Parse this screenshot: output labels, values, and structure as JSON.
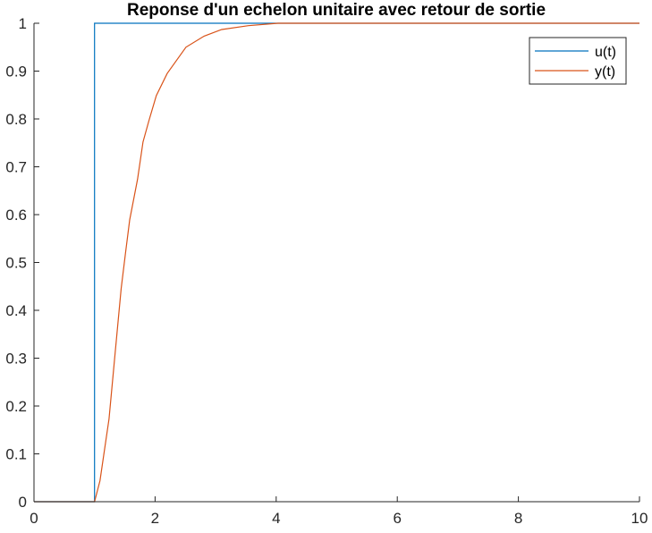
{
  "chart_data": {
    "type": "line",
    "title": "Reponse d'un echelon unitaire avec retour de sortie",
    "xlabel": "",
    "ylabel": "",
    "xlim": [
      0,
      10
    ],
    "ylim": [
      0,
      1
    ],
    "xticks": [
      0,
      2,
      4,
      6,
      8,
      10
    ],
    "yticks": [
      0,
      0.1,
      0.2,
      0.3,
      0.4,
      0.5,
      0.6,
      0.7,
      0.8,
      0.9,
      1
    ],
    "grid": false,
    "legend_position": "top-right",
    "series": [
      {
        "name": "u(t)",
        "color": "#0072BD",
        "x": [
          0,
          1,
          1,
          10
        ],
        "y": [
          0,
          0,
          1,
          1
        ]
      },
      {
        "name": "y(t)",
        "color": "#D95319",
        "x": [
          0,
          1,
          1.09,
          1.24,
          1.34,
          1.44,
          1.51,
          1.58,
          1.71,
          1.8,
          1.9,
          2.02,
          2.2,
          2.51,
          2.81,
          3.1,
          3.54,
          4.03,
          10
        ],
        "y": [
          0,
          0,
          0.044,
          0.173,
          0.31,
          0.446,
          0.518,
          0.589,
          0.674,
          0.752,
          0.797,
          0.849,
          0.895,
          0.95,
          0.973,
          0.987,
          0.995,
          1.0,
          1.0
        ]
      }
    ]
  }
}
